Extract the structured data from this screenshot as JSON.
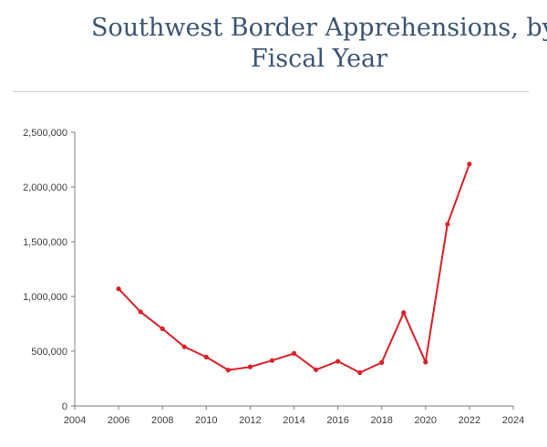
{
  "title_line1": "Southwest Border Apprehensions, by",
  "title_line2": "Fiscal Year",
  "chart_data": {
    "type": "line",
    "title": "Southwest Border Apprehensions, by Fiscal Year",
    "xlim": [
      2004,
      2024
    ],
    "ylim": [
      0,
      2500000
    ],
    "x_ticks": [
      2004,
      2006,
      2008,
      2010,
      2012,
      2014,
      2016,
      2018,
      2020,
      2022,
      2024
    ],
    "y_ticks": [
      0,
      500000,
      1000000,
      1500000,
      2000000,
      2500000
    ],
    "x_tick_labels": [
      "2004",
      "2006",
      "2008",
      "2010",
      "2012",
      "2014",
      "2016",
      "2018",
      "2020",
      "2022",
      "2024"
    ],
    "y_tick_labels": [
      "0",
      "500,000",
      "1,000,000",
      "1,500,000",
      "2,000,000",
      "2,500,000"
    ],
    "grid": false,
    "color": "#dd1f26",
    "series": [
      {
        "x": [
          2006,
          2007,
          2008,
          2009,
          2010,
          2011,
          2012,
          2013,
          2014,
          2015,
          2016,
          2017,
          2018,
          2019,
          2020,
          2021,
          2022
        ],
        "values": [
          1070000,
          860000,
          705000,
          540000,
          447000,
          328000,
          357000,
          415000,
          480000,
          331000,
          408000,
          304000,
          397000,
          852000,
          401000,
          1660000,
          2210000
        ]
      }
    ]
  }
}
